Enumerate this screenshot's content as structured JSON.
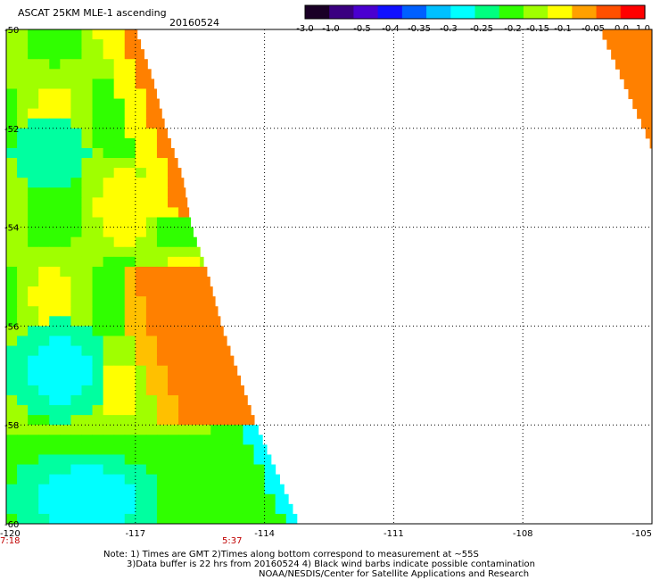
{
  "header": {
    "title": "ASCAT 25KM MLE-1 ascending",
    "date": "20160524"
  },
  "colorbar": {
    "labels": [
      "-3.0",
      "-1.0",
      "-0.5",
      "-0.4",
      "-0.35",
      "-0.3",
      "-0.25",
      "-0.2",
      "-0.15",
      "-0.1",
      "-0.05",
      "0.0",
      "1.0"
    ],
    "colors": [
      "#1a0026",
      "#3a0080",
      "#4a00d0",
      "#1010ff",
      "#0060ff",
      "#00c0ff",
      "#00ffff",
      "#00ff80",
      "#30ff00",
      "#a0ff00",
      "#ffff00",
      "#ffa000",
      "#ff5000",
      "#ff0000"
    ]
  },
  "map": {
    "lat_labels": [
      "-50",
      "-52",
      "-54",
      "-56",
      "-58",
      "-60"
    ],
    "lon_labels": [
      "-120",
      "-117",
      "-114",
      "-111",
      "-108",
      "-105"
    ],
    "time_labels": [
      "7:18",
      "5:37"
    ],
    "swath_colors": {
      "cyan": "#00ffff",
      "aqua": "#00ffa0",
      "green": "#30ff00",
      "lime": "#a0ff00",
      "yellow": "#ffff00",
      "amber": "#ffc000",
      "orange": "#ff8000"
    }
  },
  "footer": {
    "line1": "Note: 1) Times are GMT 2)Times along bottom correspond to measurement at ~55S",
    "line2": "3)Data buffer is 22 hrs from 20160524 4) Black wind barbs indicate possible contamination",
    "line3": "NOAA/NESDIS/Center for Satellite Applications and Research"
  }
}
